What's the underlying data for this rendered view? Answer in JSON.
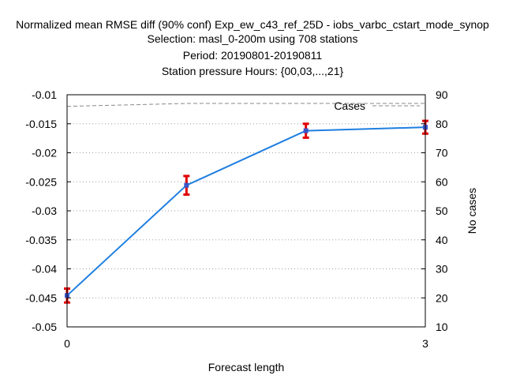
{
  "chart_data": {
    "type": "line",
    "title_lines": [
      "Normalized mean RMSE diff (90% conf) Exp_ew_c43_ref_25D - iobs_varbc_cstart_mode_synop",
      "Selection: masl_0-200m using   708 stations",
      "Period: 20190801-20190811",
      "Station pressure   Hours: {00,03,...,21}"
    ],
    "xlabel": "Forecast length",
    "ylabel_right": "No cases",
    "xlim": [
      0,
      3
    ],
    "ylim": [
      -0.05,
      -0.01
    ],
    "y2lim": [
      10,
      90
    ],
    "x_ticks": [
      "0",
      "3"
    ],
    "y_ticks": [
      "-0.01",
      "-0.015",
      "-0.02",
      "-0.025",
      "-0.03",
      "-0.035",
      "-0.04",
      "-0.045",
      "-0.05"
    ],
    "y2_ticks": [
      "90",
      "80",
      "70",
      "60",
      "50",
      "40",
      "30",
      "20",
      "10"
    ],
    "grid": true,
    "legend_position": "top-right",
    "series": [
      {
        "x": [
          0,
          1,
          2,
          3
        ],
        "values": [
          -0.0446,
          -0.0256,
          -0.0162,
          -0.0156
        ],
        "err_low": [
          -0.0458,
          -0.0272,
          -0.0174,
          -0.0167
        ],
        "err_high": [
          -0.0434,
          -0.024,
          -0.015,
          -0.0145
        ],
        "color": "#1f7fe0",
        "marker_color": "#3a55c8",
        "errorbar_color": "#e00000"
      },
      {
        "name": "Cases",
        "axis": "right",
        "x": [
          0,
          1,
          2,
          3
        ],
        "values": [
          86,
          87,
          87,
          87
        ],
        "color": "#888888",
        "style": "dashed"
      }
    ]
  }
}
